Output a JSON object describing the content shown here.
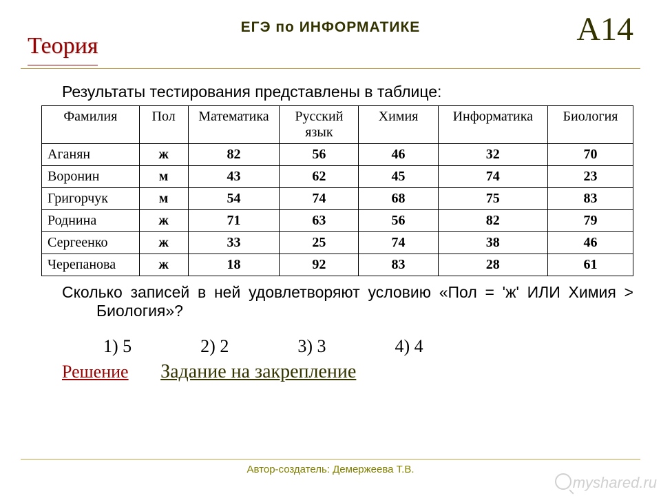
{
  "header": {
    "title": "Теория",
    "subtitle": "ЕГЭ  по  ИНФОРМАТИКЕ",
    "code": "A14"
  },
  "intro": "Результаты тестирования представлены в таблице:",
  "table": {
    "columns": [
      "Фамилия",
      "Пол",
      "Математика",
      "Русский язык",
      "Химия",
      "Информатика",
      "Биология"
    ],
    "rows": [
      [
        "Аганян",
        "ж",
        "82",
        "56",
        "46",
        "32",
        "70"
      ],
      [
        "Воронин",
        "м",
        "43",
        "62",
        "45",
        "74",
        "23"
      ],
      [
        "Григорчук",
        "м",
        "54",
        "74",
        "68",
        "75",
        "83"
      ],
      [
        "Роднина",
        "ж",
        "71",
        "63",
        "56",
        "82",
        "79"
      ],
      [
        "Сергеенко",
        "ж",
        "33",
        "25",
        "74",
        "38",
        "46"
      ],
      [
        "Черепанова",
        "ж",
        "18",
        "92",
        "83",
        "28",
        "61"
      ]
    ],
    "col_widths": [
      "16%",
      "8%",
      "15%",
      "13%",
      "13%",
      "18%",
      "14%"
    ]
  },
  "question": "Сколько записей в ней удовлетворяют условию «Пол = 'ж' ИЛИ Химия > Биология»?",
  "options": [
    "1) 5",
    "2) 2",
    "3) 3",
    "4) 4"
  ],
  "links": {
    "solve": "Решение",
    "task": "Задание на закрепление"
  },
  "footer": "Автор-создатель: Демержеева Т.В.",
  "watermark": "myshared.ru",
  "colors": {
    "title": "#990000",
    "accent": "#333300",
    "rule": "#c0a040",
    "footer_text": "#808000"
  }
}
